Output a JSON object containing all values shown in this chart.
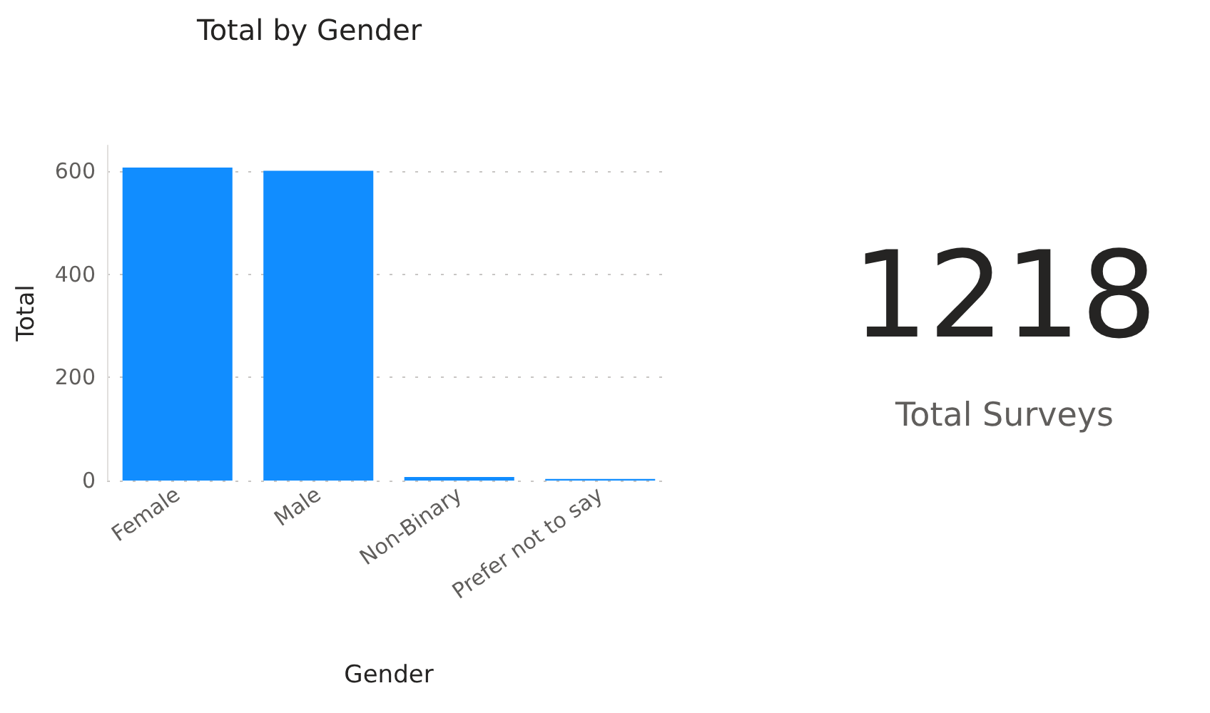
{
  "chart_data": [
    {
      "type": "bar",
      "title": "Total by Gender",
      "xlabel": "Gender",
      "ylabel": "Total",
      "categories": [
        "Female",
        "Male",
        "Non-Binary",
        "Prefer not to say"
      ],
      "values": [
        607,
        601,
        7,
        3
      ],
      "color": "#118dff",
      "ylim": [
        0,
        650
      ],
      "yticks": [
        0,
        200,
        400,
        600
      ],
      "grid": "y"
    },
    {
      "type": "other",
      "categories": [
        "Total Surveys"
      ],
      "values": [
        1218
      ],
      "data_labels": true
    }
  ]
}
